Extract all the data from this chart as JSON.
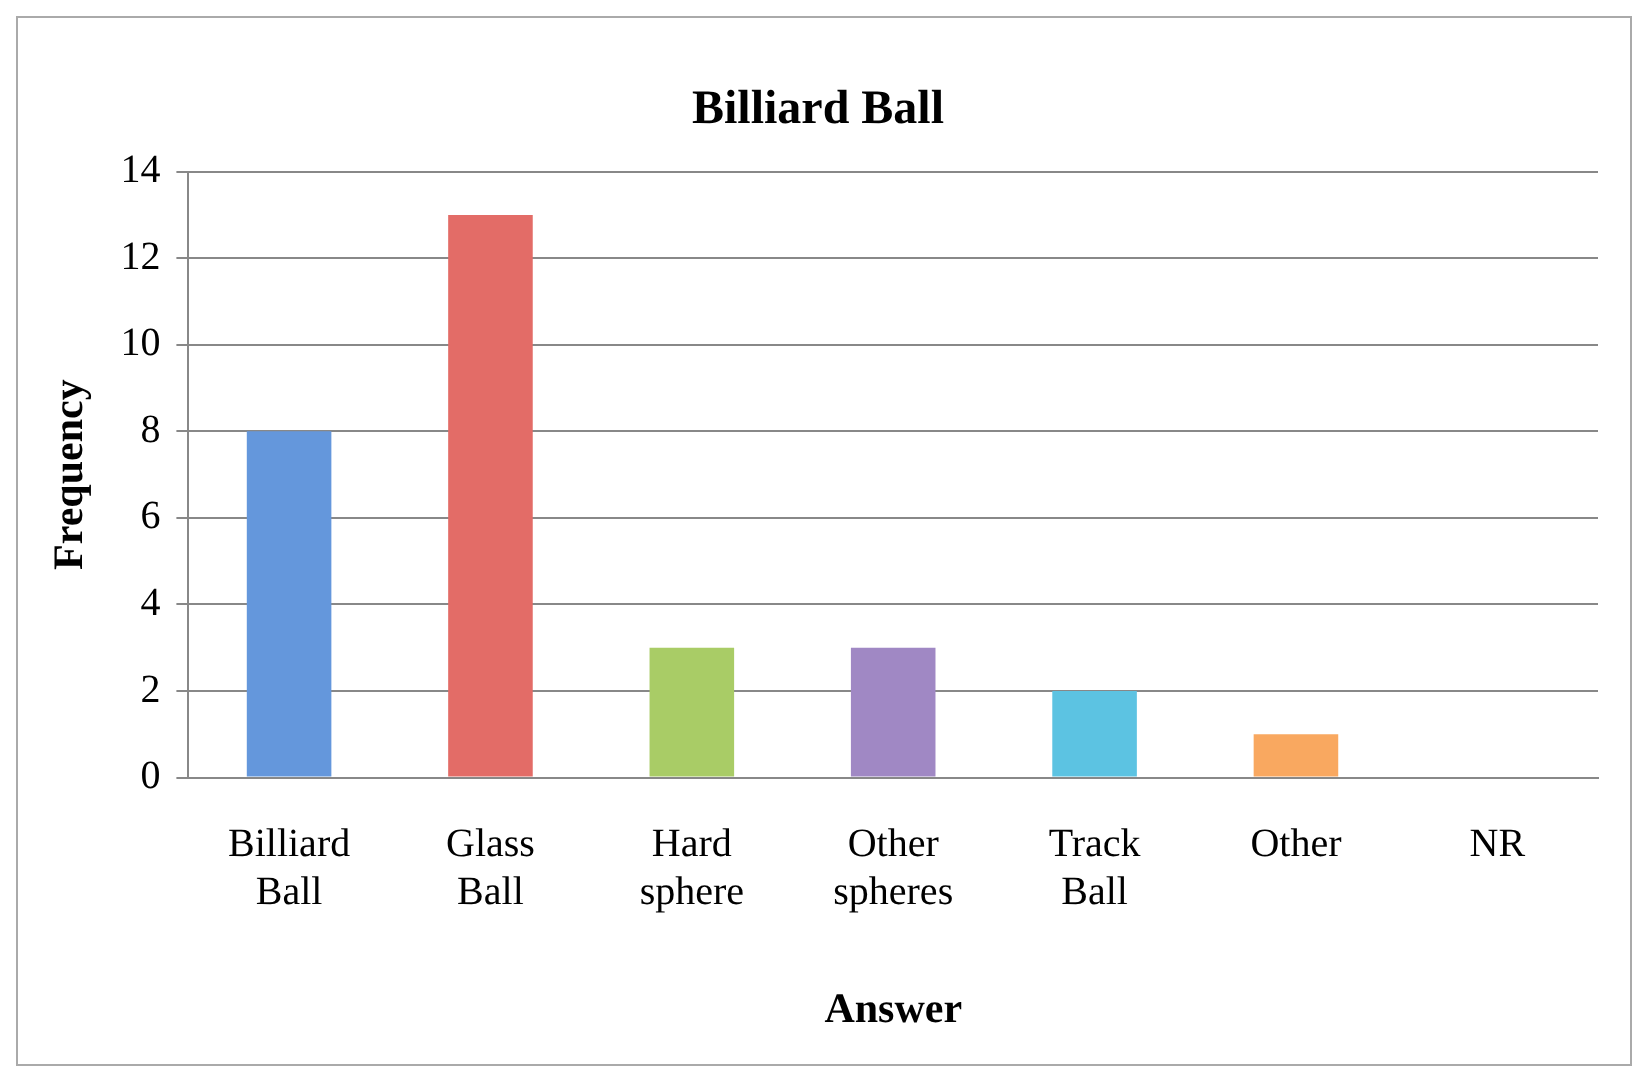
{
  "chart_data": {
    "type": "bar",
    "title": "Billiard Ball",
    "xlabel": "Answer",
    "ylabel": "Frequency",
    "categories": [
      "Billiard Ball",
      "Glass Ball",
      "Hard sphere",
      "Other spheres",
      "Track Ball",
      "Other",
      "NR"
    ],
    "values": [
      8,
      13,
      3,
      3,
      2,
      1,
      0
    ],
    "colors": [
      "#6497dc",
      "#e36c67",
      "#a9cc66",
      "#a088c4",
      "#5cc3e2",
      "#f9a860",
      "#4f81bd"
    ],
    "ylim": [
      0,
      14
    ],
    "yticks": [
      0,
      2,
      4,
      6,
      8,
      10,
      12,
      14
    ],
    "grid": "y",
    "legend": false
  }
}
